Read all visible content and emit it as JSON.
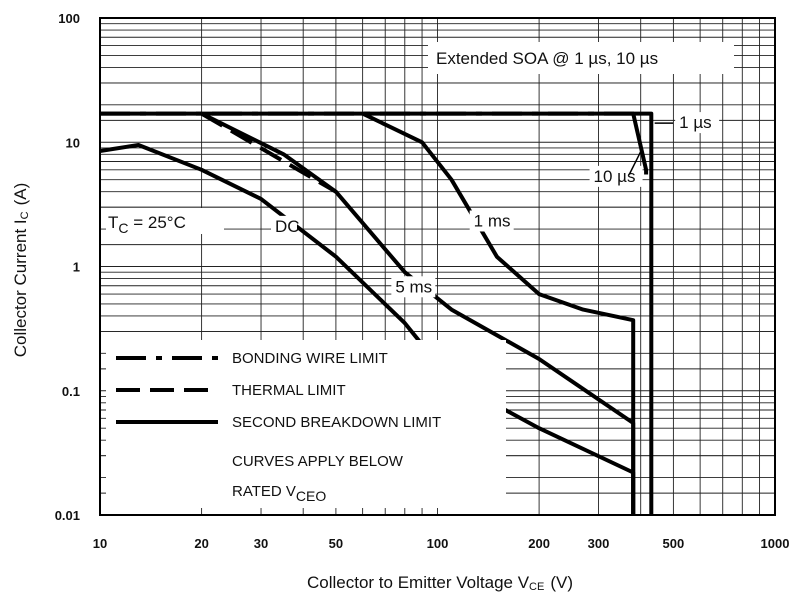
{
  "chart_data": {
    "type": "line",
    "xlabel": "Collector to Emitter Voltage  V",
    "xlabel_sub": "CE",
    "xlabel_unit": "(V)",
    "ylabel": "Collector Current  I",
    "ylabel_sub": "C",
    "ylabel_unit": "(A)",
    "x_scale": "log",
    "y_scale": "log",
    "xlim": [
      10,
      1000
    ],
    "ylim": [
      0.01,
      100
    ],
    "grid": true,
    "x_ticks": [
      "10",
      "20",
      "30",
      "50",
      "100",
      "200",
      "300",
      "500",
      "1000"
    ],
    "x_tick_values": [
      10,
      20,
      30,
      50,
      100,
      200,
      300,
      500,
      1000
    ],
    "y_ticks": [
      "100",
      "10",
      "1",
      "0.1",
      "0.01"
    ],
    "y_tick_values": [
      100,
      10,
      1,
      0.1,
      0.01
    ],
    "box_label": "Extended SOA @ 1 µs, 10 µs",
    "condition_label": "T",
    "condition_sub": "C",
    "condition_rest": " = 25°C",
    "series": [
      {
        "name": "BONDING WIRE LIMIT",
        "style": "dash-dot",
        "x": [
          10,
          400
        ],
        "y": [
          17,
          17
        ]
      },
      {
        "name": "THERMAL LIMIT",
        "style": "dashed",
        "x": [
          20,
          50
        ],
        "y": [
          17,
          4
        ]
      },
      {
        "name": "1 µs",
        "style": "solid",
        "x": [
          10,
          400,
          430,
          430
        ],
        "y": [
          17,
          17,
          17,
          0.01
        ]
      },
      {
        "name": "10 µs",
        "style": "solid",
        "x": [
          380,
          415,
          415
        ],
        "y": [
          17,
          6,
          5.5
        ]
      },
      {
        "name": "1 ms",
        "style": "solid",
        "x": [
          60,
          90,
          110,
          150,
          200,
          270,
          380,
          380
        ],
        "y": [
          17,
          10,
          5,
          1.2,
          0.6,
          0.45,
          0.37,
          0.01
        ]
      },
      {
        "name": "5 ms",
        "style": "solid",
        "x": [
          20,
          35,
          50,
          80,
          110,
          200,
          380,
          380
        ],
        "y": [
          17,
          8,
          4,
          0.9,
          0.45,
          0.18,
          0.055,
          0.01
        ]
      },
      {
        "name": "DC",
        "style": "solid",
        "x": [
          10,
          13,
          20,
          30,
          50,
          80,
          110,
          200,
          380,
          380
        ],
        "y": [
          8.5,
          9.5,
          6,
          3.5,
          1.2,
          0.35,
          0.12,
          0.05,
          0.022,
          0.01
        ]
      }
    ],
    "curve_labels": [
      {
        "text": "1 µs",
        "x": 520,
        "y": 13
      },
      {
        "text": "10 µs",
        "x": 290,
        "y": 4.8
      },
      {
        "text": "1 ms",
        "x": 128,
        "y": 2.1
      },
      {
        "text": "5 ms",
        "x": 75,
        "y": 0.62
      },
      {
        "text": "DC",
        "x": 33,
        "y": 1.9
      }
    ],
    "legend": {
      "placement": "bottom-left",
      "entries": [
        {
          "label": "BONDING WIRE LIMIT",
          "style": "dash-dot"
        },
        {
          "label": "THERMAL LIMIT",
          "style": "dashed"
        },
        {
          "label": "SECOND BREAKDOWN LIMIT",
          "style": "solid"
        }
      ],
      "note_line1": "CURVES APPLY BELOW",
      "note_line2": "RATED V",
      "note_sub": "CEO"
    }
  }
}
